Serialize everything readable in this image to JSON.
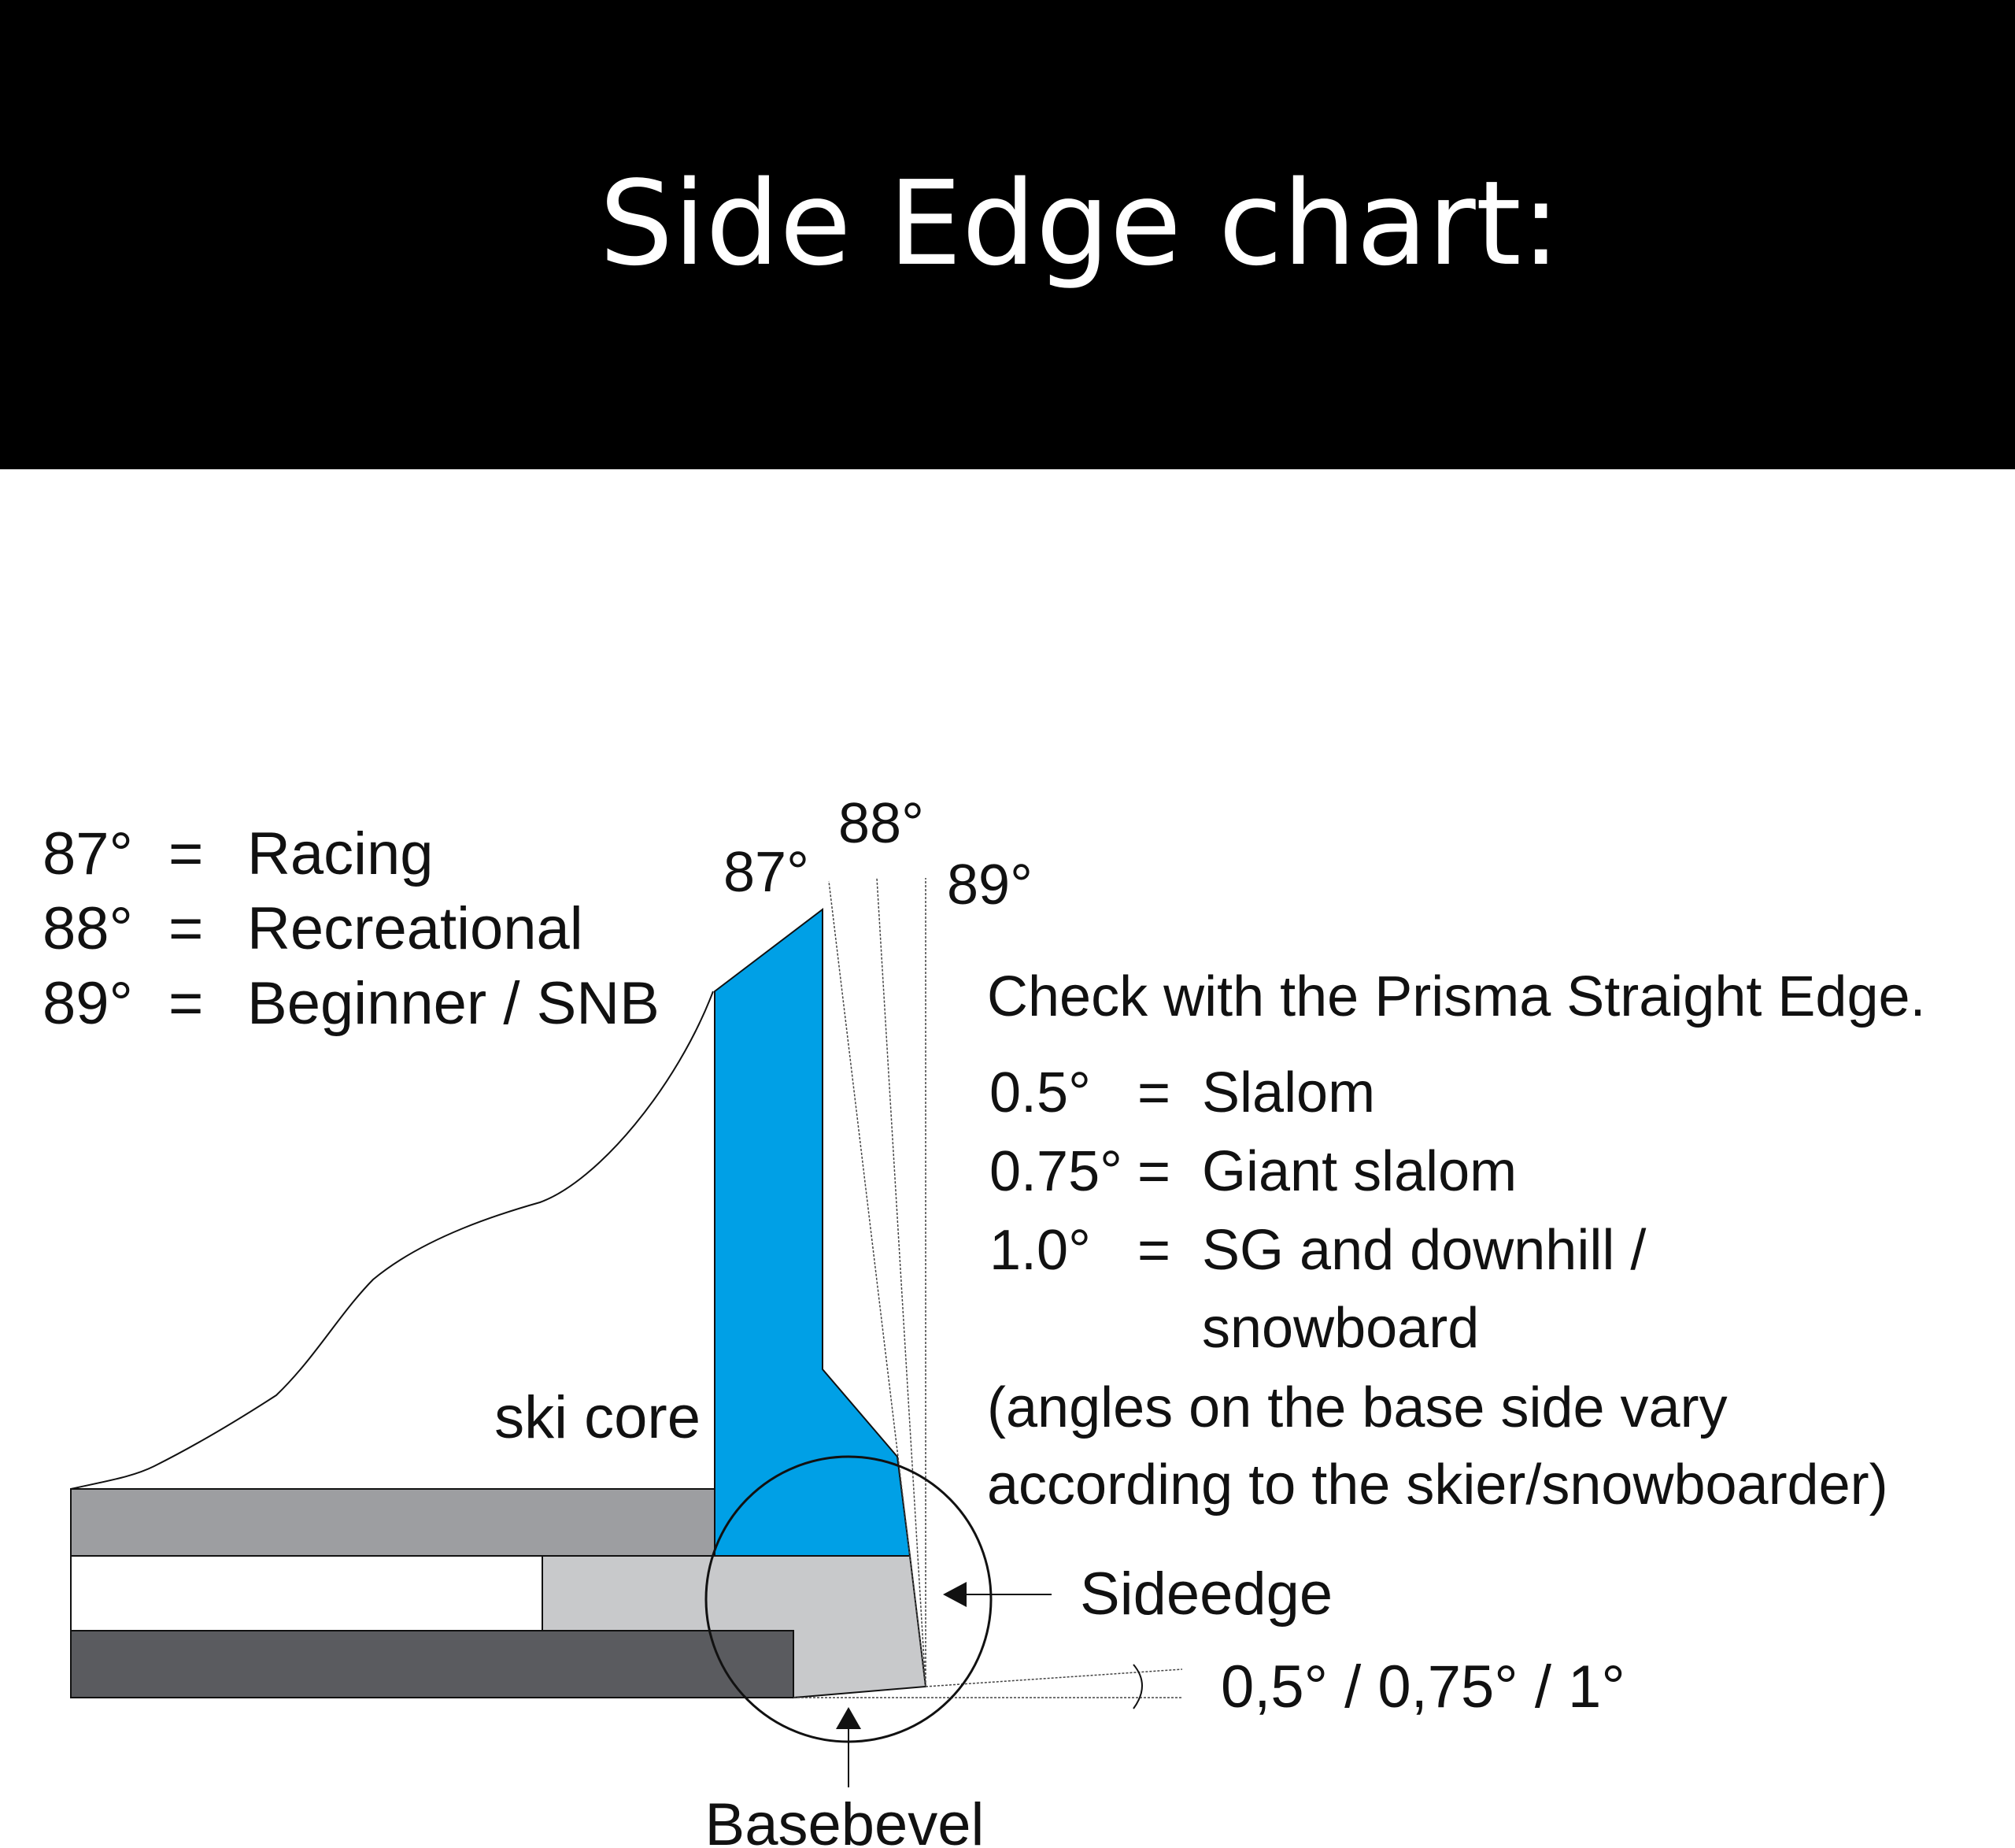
{
  "header": {
    "title": "Side Edge chart:"
  },
  "legend": [
    {
      "angle": "87°",
      "eq": "=",
      "label": "Racing"
    },
    {
      "angle": "88°",
      "eq": "=",
      "label": "Recreational"
    },
    {
      "angle": "89°",
      "eq": "=",
      "label": "Beginner / SNB"
    }
  ],
  "angle_labels": {
    "a87": "87°",
    "a88": "88°",
    "a89": "89°"
  },
  "right_text": {
    "check": "Check with the Prisma Straight Edge.",
    "rows": [
      {
        "angle": "0.5°",
        "eq": "=",
        "label": "Slalom"
      },
      {
        "angle": "0.75°",
        "eq": "=",
        "label": "Giant slalom"
      },
      {
        "angle": "1.0°",
        "eq": "=",
        "label": "SG and downhill /"
      }
    ],
    "continuation": "snowboard",
    "note_line1": "(angles on the base side vary",
    "note_line2": "according to the skier/snowboarder)"
  },
  "labels": {
    "ski_core": "ski core",
    "sideedge": "Sideedge",
    "basebevel": "Basebevel",
    "bevel_angles": "0,5° / 0,75° / 1°"
  },
  "colors": {
    "header_bg": "#000000",
    "edge_blue": "#00a0e6",
    "top_layer": "#9d9ea1",
    "edge_steel": "#c8c9cb",
    "base_layer": "#5a5b5f"
  }
}
